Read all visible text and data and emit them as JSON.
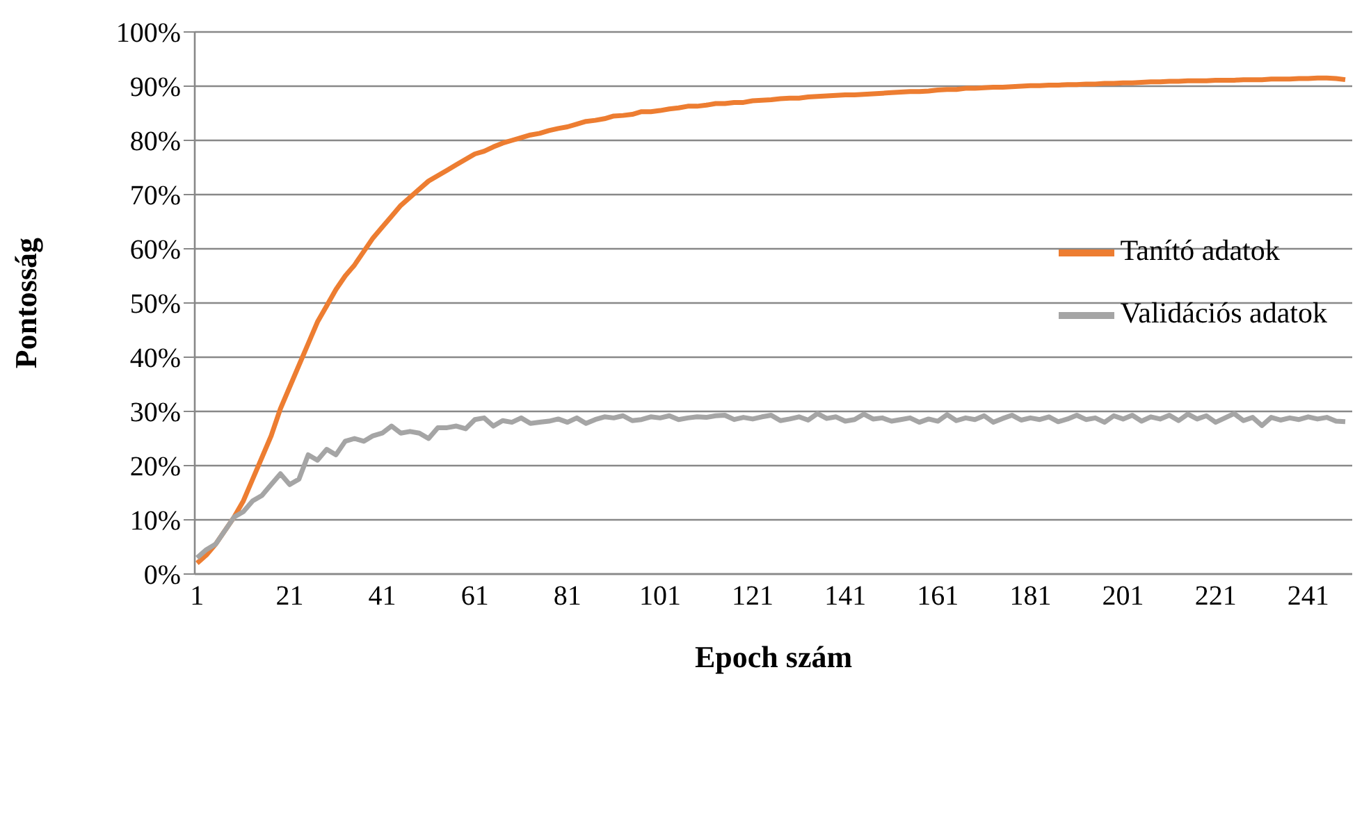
{
  "chart_data": {
    "type": "line",
    "xlabel": "Epoch szám",
    "ylabel": "Pontosság",
    "x": [
      1,
      3,
      5,
      7,
      9,
      11,
      13,
      15,
      17,
      19,
      21,
      23,
      25,
      27,
      29,
      31,
      33,
      35,
      37,
      39,
      41,
      43,
      45,
      47,
      49,
      51,
      53,
      55,
      57,
      59,
      61,
      63,
      65,
      67,
      69,
      71,
      73,
      75,
      77,
      79,
      81,
      83,
      85,
      87,
      89,
      91,
      93,
      95,
      97,
      99,
      101,
      103,
      105,
      107,
      109,
      111,
      113,
      115,
      117,
      119,
      121,
      123,
      125,
      127,
      129,
      131,
      133,
      135,
      137,
      139,
      141,
      143,
      145,
      147,
      149,
      151,
      153,
      155,
      157,
      159,
      161,
      163,
      165,
      167,
      169,
      171,
      173,
      175,
      177,
      179,
      181,
      183,
      185,
      187,
      189,
      191,
      193,
      195,
      197,
      199,
      201,
      203,
      205,
      207,
      209,
      211,
      213,
      215,
      217,
      219,
      221,
      223,
      225,
      227,
      229,
      231,
      233,
      235,
      237,
      239,
      241,
      243,
      245,
      247,
      249
    ],
    "series": [
      {
        "name": "Tanító adatok",
        "color": "#ed7d31",
        "values": [
          2.0,
          3.5,
          5.5,
          8.0,
          10.5,
          13.5,
          17.5,
          21.5,
          25.5,
          30.5,
          34.5,
          38.5,
          42.5,
          46.5,
          49.5,
          52.5,
          55.0,
          57.0,
          59.5,
          62.0,
          64.0,
          66.0,
          68.0,
          69.5,
          71.0,
          72.5,
          73.5,
          74.5,
          75.5,
          76.5,
          77.5,
          78.0,
          78.8,
          79.5,
          80.0,
          80.5,
          81.0,
          81.3,
          81.8,
          82.2,
          82.5,
          83.0,
          83.5,
          83.7,
          84.0,
          84.5,
          84.6,
          84.8,
          85.3,
          85.3,
          85.5,
          85.8,
          86.0,
          86.3,
          86.3,
          86.5,
          86.8,
          86.8,
          87.0,
          87.0,
          87.3,
          87.4,
          87.5,
          87.7,
          87.8,
          87.8,
          88.0,
          88.1,
          88.2,
          88.3,
          88.4,
          88.4,
          88.5,
          88.6,
          88.7,
          88.8,
          88.9,
          89.0,
          89.0,
          89.1,
          89.3,
          89.4,
          89.4,
          89.6,
          89.6,
          89.7,
          89.8,
          89.8,
          89.9,
          90.0,
          90.1,
          90.1,
          90.2,
          90.2,
          90.3,
          90.3,
          90.4,
          90.4,
          90.5,
          90.5,
          90.6,
          90.6,
          90.7,
          90.8,
          90.8,
          90.9,
          90.9,
          91.0,
          91.0,
          91.0,
          91.1,
          91.1,
          91.1,
          91.2,
          91.2,
          91.2,
          91.3,
          91.3,
          91.3,
          91.4,
          91.4,
          91.5,
          91.5,
          91.4,
          91.2
        ]
      },
      {
        "name": "Validációs adatok",
        "color": "#a5a5a5",
        "values": [
          3.0,
          4.5,
          5.5,
          8.0,
          10.5,
          11.5,
          13.5,
          14.5,
          16.5,
          18.5,
          16.5,
          17.5,
          22.0,
          21.0,
          23.0,
          22.0,
          24.5,
          25.0,
          24.5,
          25.5,
          26.0,
          27.3,
          26.0,
          26.3,
          26.0,
          25.0,
          27.0,
          27.0,
          27.3,
          26.8,
          28.5,
          28.8,
          27.3,
          28.3,
          28.0,
          28.8,
          27.8,
          28.0,
          28.2,
          28.6,
          28.0,
          28.8,
          27.8,
          28.5,
          29.0,
          28.8,
          29.2,
          28.3,
          28.5,
          29.0,
          28.8,
          29.2,
          28.5,
          28.8,
          29.0,
          28.9,
          29.2,
          29.3,
          28.5,
          28.9,
          28.6,
          29.0,
          29.3,
          28.3,
          28.6,
          29.0,
          28.4,
          29.6,
          28.7,
          29.0,
          28.2,
          28.5,
          29.5,
          28.6,
          28.8,
          28.2,
          28.5,
          28.8,
          28.0,
          28.6,
          28.2,
          29.4,
          28.3,
          28.8,
          28.5,
          29.2,
          28.0,
          28.7,
          29.3,
          28.4,
          28.8,
          28.5,
          29.0,
          28.1,
          28.6,
          29.3,
          28.5,
          28.8,
          28.0,
          29.2,
          28.6,
          29.3,
          28.2,
          29.0,
          28.6,
          29.3,
          28.3,
          29.5,
          28.6,
          29.2,
          28.0,
          28.8,
          29.6,
          28.3,
          28.9,
          27.4,
          28.9,
          28.4,
          28.8,
          28.5,
          29.0,
          28.6,
          28.9,
          28.2,
          28.1
        ]
      }
    ],
    "xlim": [
      0.5,
      250.5
    ],
    "xticks": [
      1,
      21,
      41,
      61,
      81,
      101,
      121,
      141,
      161,
      181,
      201,
      221,
      241
    ],
    "ylim": [
      0,
      100
    ],
    "yticks": [
      {
        "value": 0,
        "label": "0%"
      },
      {
        "value": 10,
        "label": "10%"
      },
      {
        "value": 20,
        "label": "20%"
      },
      {
        "value": 30,
        "label": "30%"
      },
      {
        "value": 40,
        "label": "40%"
      },
      {
        "value": 50,
        "label": "50%"
      },
      {
        "value": 60,
        "label": "60%"
      },
      {
        "value": 70,
        "label": "70%"
      },
      {
        "value": 80,
        "label": "80%"
      },
      {
        "value": 90,
        "label": "90%"
      },
      {
        "value": 100,
        "label": "100%"
      }
    ],
    "grid": "y",
    "legend": "right",
    "marker": "none",
    "line_style": "solid"
  }
}
